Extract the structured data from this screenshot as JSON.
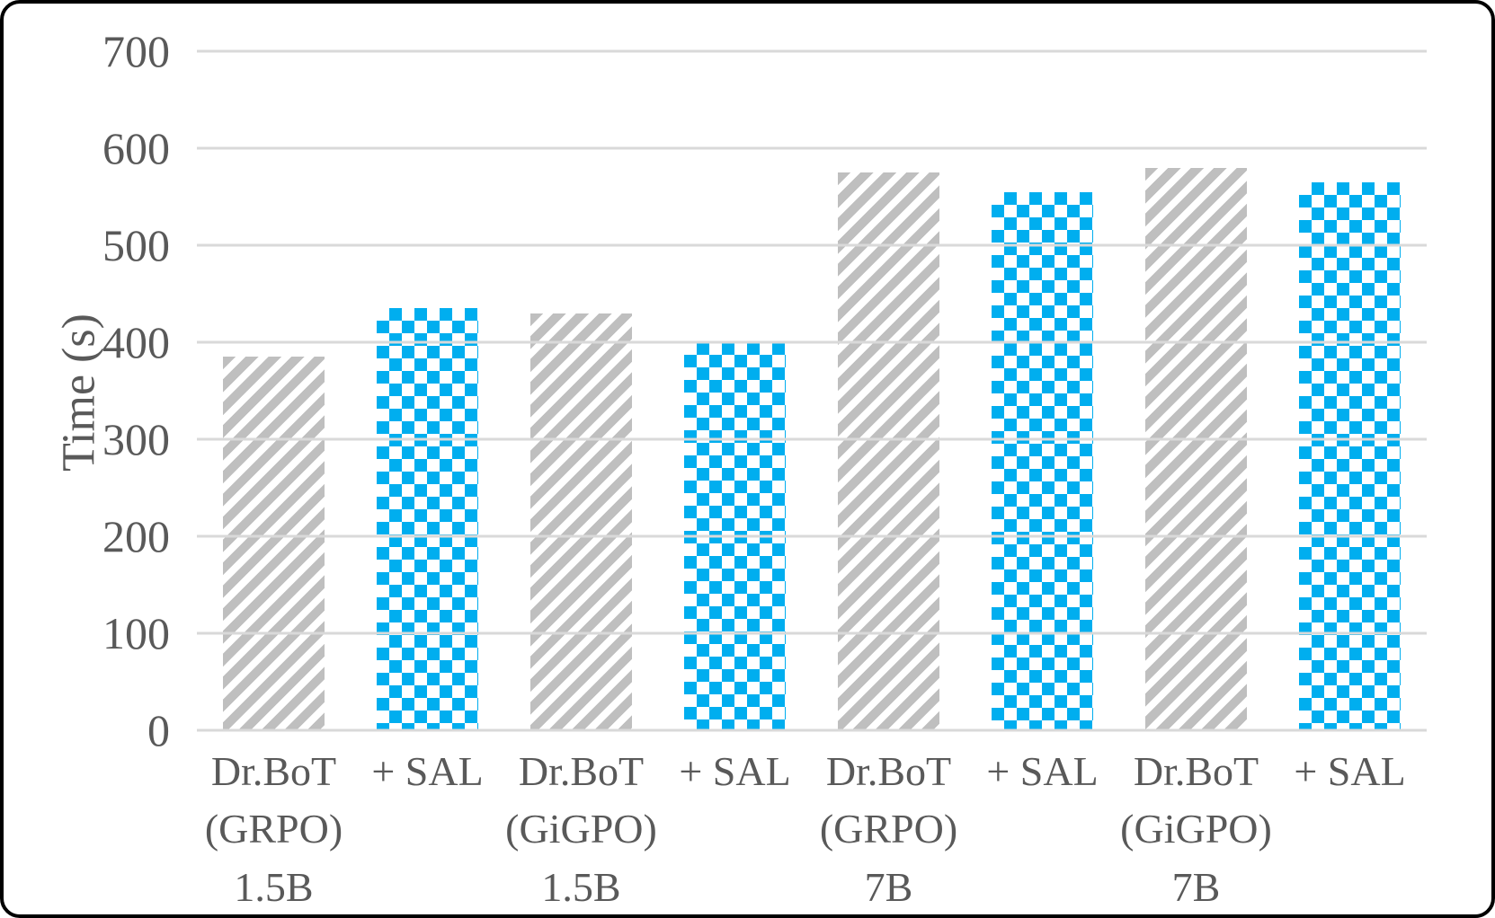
{
  "chart_data": {
    "type": "bar",
    "title": "",
    "xlabel": "",
    "ylabel": "Time (s)",
    "ylim": [
      0,
      700
    ],
    "y_ticks": [
      0,
      100,
      200,
      300,
      400,
      500,
      600,
      700
    ],
    "grid": true,
    "legend": "none",
    "categories": [
      "Dr.BoT (GRPO) 1.5B",
      "+ SAL",
      "Dr.BoT (GiGPO) 1.5B",
      "+ SAL",
      "Dr.BoT (GRPO) 7B",
      "+ SAL",
      "Dr.BoT (GiGPO) 7B",
      "+ SAL"
    ],
    "values": [
      385,
      435,
      430,
      400,
      575,
      555,
      580,
      565
    ],
    "bars": [
      {
        "label_lines": [
          "Dr.BoT",
          "(GRPO)",
          "1.5B"
        ],
        "value": 385,
        "pattern": "diagonal-stripe",
        "color": "#BFBFBF"
      },
      {
        "label_lines": [
          "+ SAL"
        ],
        "value": 435,
        "pattern": "checker",
        "color": "#00AEEF"
      },
      {
        "label_lines": [
          "Dr.BoT",
          "(GiGPO)",
          "1.5B"
        ],
        "value": 430,
        "pattern": "diagonal-stripe",
        "color": "#BFBFBF"
      },
      {
        "label_lines": [
          "+ SAL"
        ],
        "value": 400,
        "pattern": "checker",
        "color": "#00AEEF"
      },
      {
        "label_lines": [
          "Dr.BoT",
          "(GRPO)",
          "7B"
        ],
        "value": 575,
        "pattern": "diagonal-stripe",
        "color": "#BFBFBF"
      },
      {
        "label_lines": [
          "+ SAL"
        ],
        "value": 555,
        "pattern": "checker",
        "color": "#00AEEF"
      },
      {
        "label_lines": [
          "Dr.BoT",
          "(GiGPO)",
          "7B"
        ],
        "value": 580,
        "pattern": "diagonal-stripe",
        "color": "#BFBFBF"
      },
      {
        "label_lines": [
          "+ SAL"
        ],
        "value": 565,
        "pattern": "checker",
        "color": "#00AEEF"
      }
    ],
    "colors": {
      "stripe_fill": "#BFBFBF",
      "checker_fill": "#00AEEF",
      "pattern_background": "#FFFFFF",
      "gridline": "#D9D9D9",
      "axis_text": "#595959",
      "frame_border": "#000000"
    }
  }
}
